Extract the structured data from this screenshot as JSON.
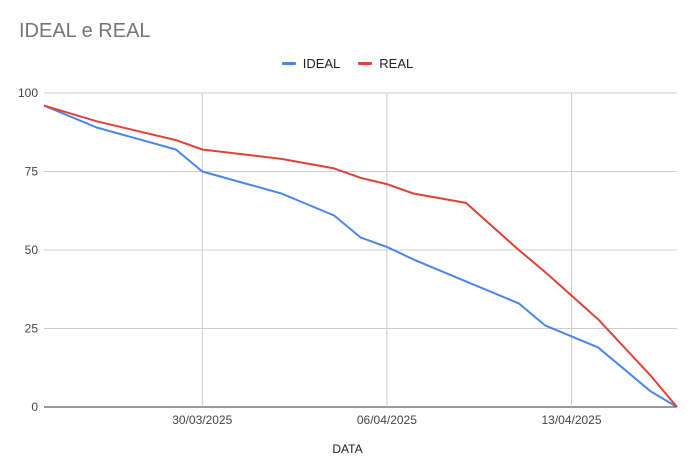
{
  "chart_data": {
    "type": "line",
    "title": "IDEAL e REAL",
    "xlabel": "DATA",
    "ylabel": "",
    "ylim": [
      0,
      100
    ],
    "yticks": [
      0,
      25,
      50,
      75,
      100
    ],
    "x": [
      0,
      2,
      5,
      6,
      9,
      11,
      12,
      13,
      14,
      16,
      18,
      19,
      21,
      23,
      24
    ],
    "x_domain": [
      0,
      24
    ],
    "x_tick_labels": [
      {
        "label": "30/03/2025",
        "x": 6
      },
      {
        "label": "06/04/2025",
        "x": 13
      },
      {
        "label": "13/04/2025",
        "x": 20
      }
    ],
    "series": [
      {
        "name": "IDEAL",
        "color": "#4a86e8",
        "values": [
          96,
          89,
          82,
          75,
          68,
          61,
          54,
          51,
          47,
          40,
          33,
          26,
          19,
          5,
          0
        ]
      },
      {
        "name": "REAL",
        "color": "#db4437",
        "values": [
          96,
          91,
          85,
          82,
          79,
          76,
          73,
          71,
          68,
          65,
          50,
          43,
          28,
          10,
          0
        ]
      }
    ],
    "grid": true,
    "legend_position": "top-center"
  }
}
